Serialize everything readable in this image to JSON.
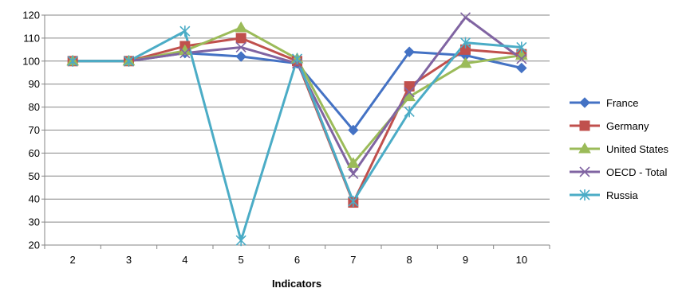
{
  "chart_data": {
    "type": "line",
    "title": "",
    "xlabel": "Indicators",
    "ylabel": "",
    "categories": [
      "2",
      "3",
      "4",
      "5",
      "6",
      "7",
      "8",
      "9",
      "10"
    ],
    "ylim": [
      20,
      120
    ],
    "yticks": [
      20,
      30,
      40,
      50,
      60,
      70,
      80,
      90,
      100,
      110,
      120
    ],
    "grid": "horizontal",
    "legend_position": "right",
    "series": [
      {
        "name": "France",
        "color": "#4472C4",
        "marker": "diamond",
        "values": [
          100,
          100,
          103.5,
          102,
          99,
          70,
          104,
          102.5,
          97
        ]
      },
      {
        "name": "Germany",
        "color": "#C0504D",
        "marker": "square",
        "values": [
          100,
          100,
          106.5,
          110,
          100,
          38.5,
          89,
          105,
          103
        ]
      },
      {
        "name": "United States",
        "color": "#9BBB59",
        "marker": "triangle",
        "values": [
          100,
          100,
          104.5,
          114.5,
          101,
          55.5,
          84.5,
          99,
          102.5
        ]
      },
      {
        "name": "OECD - Total",
        "color": "#8064A2",
        "marker": "x",
        "values": [
          100,
          100,
          103.5,
          106,
          99,
          51,
          86.5,
          119,
          101
        ]
      },
      {
        "name": "Russia",
        "color": "#4BACC6",
        "marker": "star",
        "values": [
          100,
          100,
          113,
          22,
          101,
          39,
          78,
          108,
          106
        ]
      }
    ]
  }
}
